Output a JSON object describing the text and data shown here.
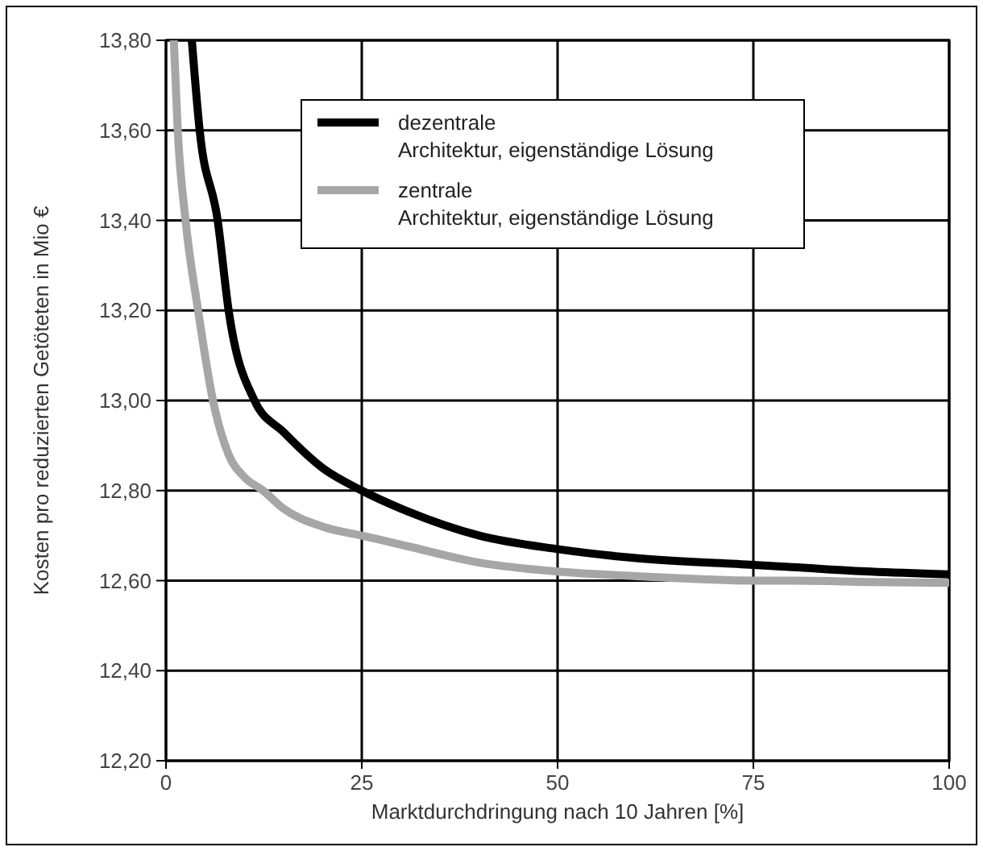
{
  "chart_data": {
    "type": "line",
    "xlabel": "Marktdurchdringung nach 10 Jahren [%]",
    "ylabel": "Kosten pro reduzierten Getöteten in Mio  €",
    "xlim": [
      0,
      100
    ],
    "xticks": [
      0,
      25,
      50,
      75,
      100
    ],
    "ylim": [
      12.2,
      13.8
    ],
    "yticks": [
      {
        "value": 12.2,
        "label": "12,20"
      },
      {
        "value": 12.4,
        "label": "12,40"
      },
      {
        "value": 12.6,
        "label": "12,60"
      },
      {
        "value": 12.8,
        "label": "12,80"
      },
      {
        "value": 13.0,
        "label": "13,00"
      },
      {
        "value": 13.2,
        "label": "13,20"
      },
      {
        "value": 13.4,
        "label": "13,40"
      },
      {
        "value": 13.6,
        "label": "13,60"
      },
      {
        "value": 13.8,
        "label": "13,80"
      }
    ],
    "grid": true,
    "legend": "top",
    "marker": "none",
    "line_style": "solid",
    "series": [
      {
        "name": "dezentrale\nArchitektur, eigenständige Lösung",
        "color": "#000000",
        "x": [
          3.3,
          4.3,
          6.6,
          8,
          11.3,
          15,
          20,
          25,
          30,
          40,
          50,
          60,
          75,
          80,
          90,
          100
        ],
        "values": [
          13.8,
          13.6,
          13.4,
          13.2,
          13,
          12.93,
          12.85,
          12.8,
          12.76,
          12.7,
          12.67,
          12.65,
          12.635,
          12.63,
          12.62,
          12.614
        ]
      },
      {
        "name": "zentrale\nArchitektur, eigenständige Lösung",
        "color": "#a6a6a6",
        "x": [
          1,
          1.5,
          2.5,
          4.1,
          6,
          8,
          10,
          12.4,
          15,
          20,
          25,
          30,
          40,
          50,
          60,
          75,
          80,
          90,
          100
        ],
        "values": [
          13.8,
          13.6,
          13.4,
          13.2,
          13,
          12.88,
          12.83,
          12.8,
          12.76,
          12.72,
          12.7,
          12.68,
          12.64,
          12.62,
          12.61,
          12.6,
          12.6,
          12.597,
          12.595
        ]
      }
    ]
  }
}
